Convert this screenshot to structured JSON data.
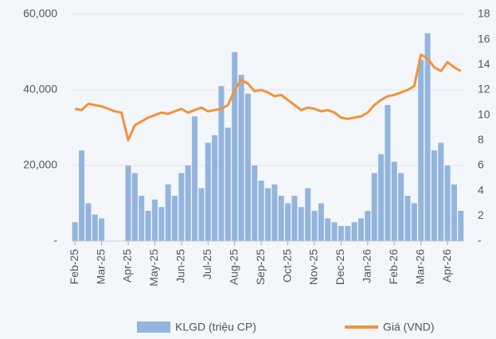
{
  "chart_data": {
    "type": "bar_line",
    "categories": [
      "Feb-25",
      null,
      null,
      null,
      "Mar-25",
      null,
      null,
      null,
      "Apr-25",
      null,
      null,
      null,
      "May-25",
      null,
      null,
      null,
      "Jun-25",
      null,
      null,
      null,
      "Jul-25",
      null,
      null,
      null,
      "Aug-25",
      null,
      null,
      null,
      "Sep-25",
      null,
      null,
      null,
      "Oct-25",
      null,
      null,
      null,
      "Nov-25",
      null,
      null,
      null,
      "Dec-25",
      null,
      null,
      null,
      "Jan-26",
      null,
      null,
      null,
      "Feb-26",
      null,
      null,
      null,
      "Mar-26",
      null,
      null,
      null,
      "Apr-26",
      null,
      null
    ],
    "series": [
      {
        "name": "KLGD (triệu CP)",
        "type": "bar",
        "color": "#93b5dd",
        "values": [
          5000,
          24000,
          10000,
          7000,
          6000,
          null,
          null,
          null,
          20000,
          18000,
          12000,
          8000,
          11000,
          9000,
          15000,
          12000,
          18000,
          20000,
          33000,
          14000,
          26000,
          28000,
          41000,
          30000,
          50000,
          44000,
          39000,
          20000,
          16000,
          14000,
          15000,
          12000,
          10000,
          12000,
          9000,
          14000,
          8000,
          10000,
          6000,
          5000,
          4000,
          4000,
          5000,
          6000,
          8000,
          18000,
          23000,
          36000,
          21000,
          18000,
          12000,
          10000,
          48000,
          55000,
          24000,
          26000,
          20000,
          15000,
          8000
        ]
      },
      {
        "name": "Giá (VND)",
        "type": "line",
        "axis": "y2",
        "color": "#f39237",
        "values": [
          10.5,
          10.4,
          10.9,
          10.8,
          10.7,
          10.5,
          10.3,
          10.2,
          8.0,
          9.2,
          9.5,
          9.8,
          10.0,
          10.2,
          10.1,
          10.3,
          10.5,
          10.2,
          10.4,
          10.6,
          10.3,
          10.4,
          10.5,
          10.8,
          12.0,
          12.8,
          12.5,
          11.9,
          12.0,
          11.8,
          11.5,
          11.6,
          11.2,
          10.8,
          10.4,
          10.6,
          10.5,
          10.3,
          10.4,
          10.2,
          9.8,
          9.7,
          9.8,
          9.9,
          10.2,
          10.8,
          11.2,
          11.5,
          11.6,
          11.8,
          12.0,
          12.3,
          14.8,
          14.5,
          13.8,
          13.5,
          14.2,
          13.8,
          13.5
        ]
      }
    ],
    "ylim": [
      0,
      60000
    ],
    "yticks": [
      {
        "value": 0,
        "label": "-"
      },
      {
        "value": 20000,
        "label": "20,000"
      },
      {
        "value": 40000,
        "label": "40,000"
      },
      {
        "value": 60000,
        "label": "60,000"
      }
    ],
    "y2lim": [
      0,
      18
    ],
    "y2ticks": [
      {
        "value": 0,
        "label": "-"
      },
      2,
      4,
      6,
      8,
      10,
      12,
      14,
      16,
      18
    ],
    "grid": true
  }
}
